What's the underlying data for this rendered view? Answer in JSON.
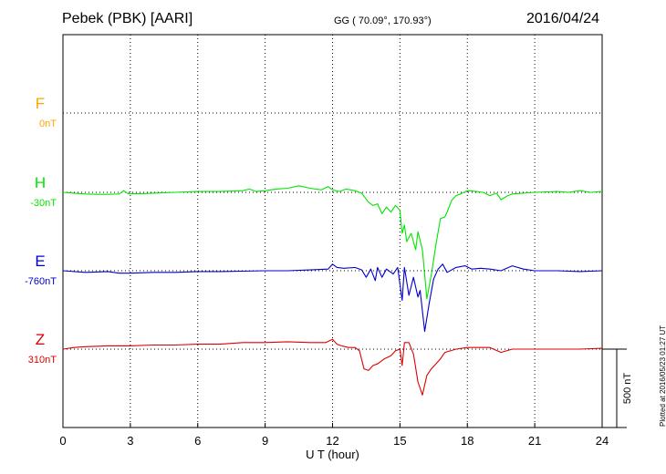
{
  "header": {
    "station": "Pebek (PBK)  [AARI]",
    "coords": "GG ( 70.09°, 170.93°)",
    "date": "2016/04/24"
  },
  "plotted_note": "Plotted at 2016/05/23 01:27 UT",
  "colors": {
    "F": "#ffa500",
    "H": "#00e600",
    "E": "#0000cc",
    "Z": "#dd0000"
  },
  "chart_data": {
    "type": "line",
    "xlabel": "U T (hour)",
    "xlim": [
      0,
      24
    ],
    "x_ticks": [
      "0",
      "3",
      "6",
      "9",
      "12",
      "15",
      "18",
      "21",
      "24"
    ],
    "scale_label": "500 nT",
    "channels": [
      {
        "name": "F",
        "baseline_label": "0nT",
        "color": "#ffa500",
        "points": []
      },
      {
        "name": "H",
        "baseline_label": "-30nT",
        "color": "#00e600",
        "points": [
          [
            0,
            0
          ],
          [
            0.5,
            -5
          ],
          [
            1,
            -10
          ],
          [
            1.5,
            -12
          ],
          [
            2,
            -12
          ],
          [
            2.5,
            -10
          ],
          [
            2.7,
            10
          ],
          [
            2.9,
            -8
          ],
          [
            3.5,
            -8
          ],
          [
            4,
            -5
          ],
          [
            5,
            0
          ],
          [
            6,
            5
          ],
          [
            7,
            5
          ],
          [
            8,
            10
          ],
          [
            8.3,
            20
          ],
          [
            8.6,
            5
          ],
          [
            9,
            10
          ],
          [
            9.5,
            20
          ],
          [
            10,
            25
          ],
          [
            10.5,
            40
          ],
          [
            11,
            25
          ],
          [
            11.5,
            15
          ],
          [
            11.8,
            35
          ],
          [
            12,
            15
          ],
          [
            12.3,
            5
          ],
          [
            12.6,
            20
          ],
          [
            13,
            10
          ],
          [
            13.3,
            -5
          ],
          [
            13.6,
            -60
          ],
          [
            13.8,
            -80
          ],
          [
            14,
            -70
          ],
          [
            14.2,
            -130
          ],
          [
            14.4,
            -90
          ],
          [
            14.6,
            -120
          ],
          [
            14.8,
            -80
          ],
          [
            15,
            -110
          ],
          [
            15.1,
            -250
          ],
          [
            15.2,
            -200
          ],
          [
            15.3,
            -300
          ],
          [
            15.5,
            -250
          ],
          [
            15.7,
            -350
          ],
          [
            15.8,
            -240
          ],
          [
            16,
            -350
          ],
          [
            16.2,
            -650
          ],
          [
            16.4,
            -500
          ],
          [
            16.6,
            -320
          ],
          [
            16.8,
            -160
          ],
          [
            17,
            -150
          ],
          [
            17.1,
            -120
          ],
          [
            17.3,
            -50
          ],
          [
            17.5,
            -20
          ],
          [
            17.7,
            -10
          ],
          [
            18,
            10
          ],
          [
            18.4,
            5
          ],
          [
            18.7,
            0
          ],
          [
            19,
            -20
          ],
          [
            19.3,
            -5
          ],
          [
            19.5,
            -45
          ],
          [
            19.8,
            -20
          ],
          [
            20,
            -10
          ],
          [
            21,
            0
          ],
          [
            22,
            5
          ],
          [
            22.5,
            0
          ],
          [
            23,
            10
          ],
          [
            23.5,
            0
          ],
          [
            24,
            5
          ]
        ]
      },
      {
        "name": "E",
        "baseline_label": "-760nT",
        "color": "#0000cc",
        "points": [
          [
            0,
            0
          ],
          [
            1,
            -10
          ],
          [
            2,
            -5
          ],
          [
            2.5,
            -15
          ],
          [
            3,
            -15
          ],
          [
            4,
            -10
          ],
          [
            5,
            -10
          ],
          [
            6,
            -5
          ],
          [
            7,
            -5
          ],
          [
            8,
            -3
          ],
          [
            9,
            0
          ],
          [
            10,
            0
          ],
          [
            11,
            5
          ],
          [
            11.8,
            10
          ],
          [
            12,
            40
          ],
          [
            12.2,
            20
          ],
          [
            12.5,
            15
          ],
          [
            13,
            20
          ],
          [
            13.3,
            5
          ],
          [
            13.5,
            -40
          ],
          [
            13.7,
            10
          ],
          [
            13.9,
            -60
          ],
          [
            14,
            20
          ],
          [
            14.2,
            -40
          ],
          [
            14.4,
            10
          ],
          [
            14.7,
            -20
          ],
          [
            14.9,
            20
          ],
          [
            15.1,
            -180
          ],
          [
            15.2,
            20
          ],
          [
            15.4,
            -150
          ],
          [
            15.6,
            -40
          ],
          [
            15.8,
            -160
          ],
          [
            15.9,
            -120
          ],
          [
            16.1,
            -370
          ],
          [
            16.3,
            -200
          ],
          [
            16.5,
            -50
          ],
          [
            16.7,
            10
          ],
          [
            16.9,
            40
          ],
          [
            17.1,
            -10
          ],
          [
            17.5,
            20
          ],
          [
            17.9,
            30
          ],
          [
            18.2,
            10
          ],
          [
            18.6,
            15
          ],
          [
            19,
            10
          ],
          [
            19.5,
            0
          ],
          [
            20,
            30
          ],
          [
            20.5,
            10
          ],
          [
            21,
            0
          ],
          [
            22,
            0
          ],
          [
            23,
            -5
          ],
          [
            24,
            0
          ]
        ]
      },
      {
        "name": "Z",
        "baseline_label": "310nT",
        "color": "#dd0000",
        "points": [
          [
            0,
            0
          ],
          [
            0.5,
            10
          ],
          [
            1,
            15
          ],
          [
            2,
            20
          ],
          [
            3,
            20
          ],
          [
            4,
            25
          ],
          [
            5,
            25
          ],
          [
            6,
            30
          ],
          [
            7,
            30
          ],
          [
            8,
            40
          ],
          [
            9,
            40
          ],
          [
            10,
            45
          ],
          [
            11,
            40
          ],
          [
            11.7,
            40
          ],
          [
            12,
            60
          ],
          [
            12.2,
            30
          ],
          [
            12.4,
            20
          ],
          [
            12.7,
            10
          ],
          [
            13,
            10
          ],
          [
            13.2,
            -10
          ],
          [
            13.4,
            -120
          ],
          [
            13.6,
            -130
          ],
          [
            13.8,
            -100
          ],
          [
            14,
            -90
          ],
          [
            14.3,
            -60
          ],
          [
            14.6,
            -40
          ],
          [
            14.8,
            -10
          ],
          [
            15,
            0
          ],
          [
            15.1,
            -100
          ],
          [
            15.2,
            40
          ],
          [
            15.4,
            40
          ],
          [
            15.6,
            -30
          ],
          [
            15.8,
            -200
          ],
          [
            16,
            -280
          ],
          [
            16.2,
            -160
          ],
          [
            16.4,
            -120
          ],
          [
            16.6,
            -90
          ],
          [
            16.8,
            -60
          ],
          [
            17,
            -20
          ],
          [
            17.5,
            0
          ],
          [
            18,
            10
          ],
          [
            19,
            10
          ],
          [
            19.5,
            -20
          ],
          [
            20,
            0
          ],
          [
            21,
            0
          ],
          [
            22,
            0
          ],
          [
            23,
            0
          ],
          [
            24,
            5
          ]
        ]
      }
    ]
  }
}
